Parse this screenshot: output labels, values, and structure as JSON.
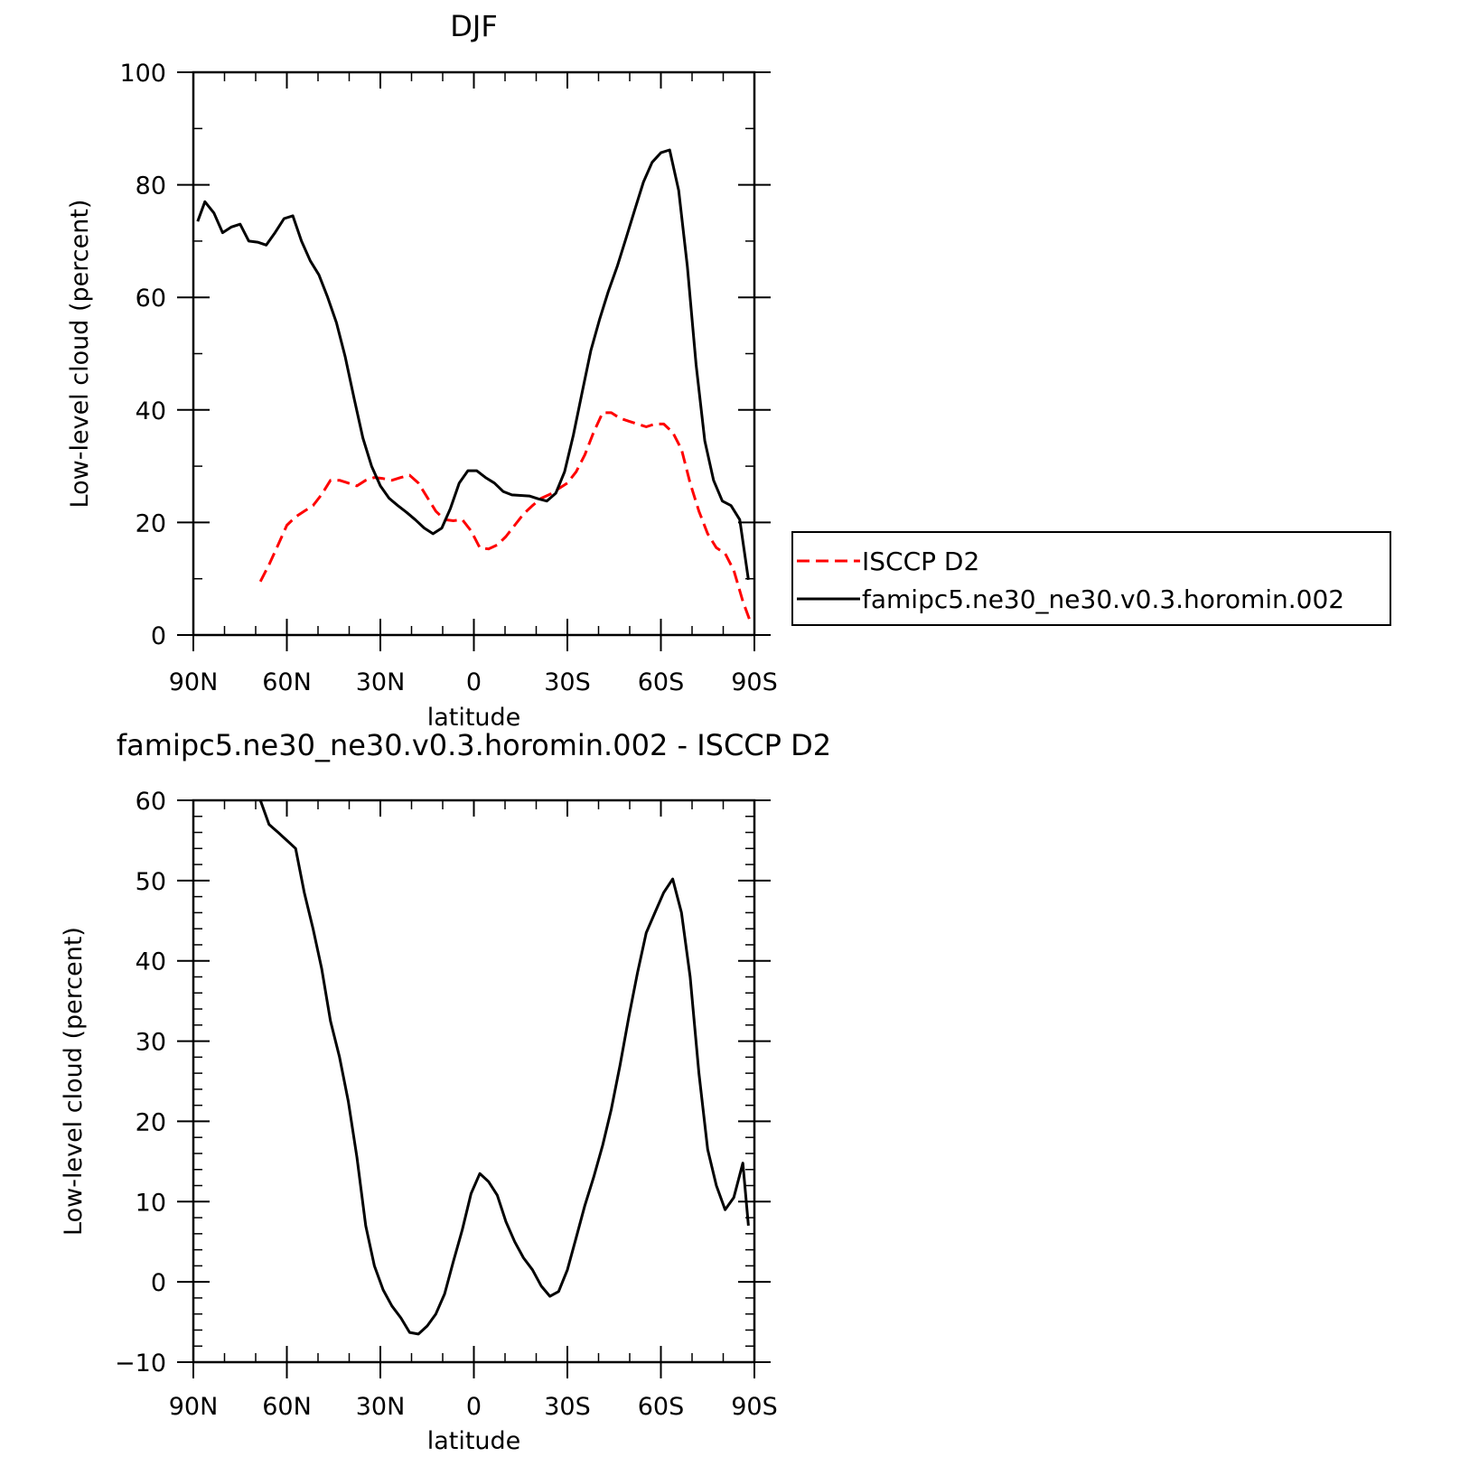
{
  "chart_data": [
    {
      "type": "line",
      "title": "DJF",
      "xlabel": "latitude",
      "ylabel": "Low-level cloud (percent)",
      "xlim": [
        90,
        -90
      ],
      "ylim": [
        0,
        100
      ],
      "xticks": [
        90,
        60,
        30,
        0,
        -30,
        -60,
        -90
      ],
      "xtick_labels": [
        "90N",
        "60N",
        "30N",
        "0",
        "30S",
        "60S",
        "90S"
      ],
      "yticks": [
        0,
        20,
        40,
        60,
        80,
        100
      ],
      "ytick_labels": [
        "0",
        "20",
        "40",
        "60",
        "80",
        "100"
      ],
      "legend": "right",
      "series": [
        {
          "name": "ISCCP D2",
          "color": "#ff0000",
          "dash": "dashed",
          "x": [
            68.5,
            65.7,
            62.8,
            60,
            57.2,
            54.4,
            51.6,
            48.8,
            46,
            43.1,
            40.3,
            37.5,
            34.7,
            31.9,
            29.1,
            26.3,
            23.4,
            20.6,
            17.8,
            15,
            12.2,
            9.4,
            6.6,
            3.7,
            0.9,
            -1.9,
            -4.7,
            -7.5,
            -10.3,
            -13.1,
            -15.9,
            -18.8,
            -21.6,
            -24.4,
            -27.2,
            -30,
            -32.8,
            -35.6,
            -38.4,
            -41.3,
            -44.1,
            -46.9,
            -49.7,
            -52.5,
            -55.3,
            -58.1,
            -60.9,
            -63.8,
            -66.6,
            -69.4,
            -72.2,
            -75,
            -77.8,
            -80.6,
            -83.4,
            -86.3,
            -88.6
          ],
          "y": [
            9.5,
            12.5,
            16,
            19.5,
            21,
            22,
            23,
            25,
            27.5,
            27.5,
            27,
            26.5,
            27.5,
            28,
            27.8,
            27.5,
            28,
            28.4,
            27,
            24.5,
            22,
            20.5,
            20.3,
            20.5,
            18.5,
            15.5,
            15.3,
            16,
            17.5,
            19.5,
            21.5,
            23,
            24.3,
            25,
            26,
            27,
            29,
            32,
            36,
            39.5,
            39.5,
            38.5,
            38,
            37.5,
            37,
            37.5,
            37.5,
            36,
            33,
            27,
            22,
            18,
            15.5,
            14.5,
            11.5,
            6,
            2.5
          ]
        },
        {
          "name": "famipc5.ne30_ne30.v0.3.horomin.002",
          "color": "#000000",
          "dash": "solid",
          "x": [
            88.6,
            86.3,
            83.4,
            80.6,
            77.8,
            75,
            72.2,
            69.4,
            66.6,
            63.8,
            60.9,
            58.1,
            55.3,
            52.5,
            49.7,
            46.9,
            44.1,
            41.3,
            38.4,
            35.6,
            32.8,
            30,
            27.2,
            24.4,
            21.6,
            18.8,
            15.9,
            13.1,
            10.3,
            7.5,
            4.7,
            1.9,
            -0.9,
            -3.7,
            -6.6,
            -9.4,
            -12.2,
            -15,
            -17.8,
            -20.6,
            -23.4,
            -26.3,
            -29.1,
            -31.9,
            -34.7,
            -37.5,
            -40.3,
            -43.1,
            -46,
            -48.8,
            -51.6,
            -54.4,
            -57.2,
            -60,
            -62.8,
            -65.7,
            -68.5,
            -71.3,
            -74.1,
            -76.9,
            -79.7,
            -82.5,
            -85.3,
            -88.1
          ],
          "y": [
            73.5,
            77,
            75,
            71.5,
            72.5,
            73,
            70,
            69.8,
            69.3,
            71.5,
            74,
            74.5,
            70,
            66.5,
            64,
            60,
            55.5,
            49.5,
            42,
            35,
            30,
            26.5,
            24.3,
            23,
            21.8,
            20.5,
            19,
            18,
            19,
            22.5,
            27,
            29.2,
            29.2,
            28,
            27,
            25.5,
            24.9,
            24.8,
            24.7,
            24.2,
            23.8,
            25.2,
            29,
            35.5,
            43,
            50.5,
            56,
            61,
            65.5,
            70.5,
            75.5,
            80.5,
            84,
            85.7,
            86.2,
            79,
            65.5,
            48,
            34.5,
            27.5,
            23.8,
            23,
            20.5,
            9.8
          ]
        }
      ]
    },
    {
      "type": "line",
      "title": "famipc5.ne30_ne30.v0.3.horomin.002 - ISCCP D2",
      "xlabel": "latitude",
      "ylabel": "Low-level cloud (percent)",
      "xlim": [
        90,
        -90
      ],
      "ylim": [
        -10,
        60
      ],
      "xticks": [
        90,
        60,
        30,
        0,
        -30,
        -60,
        -90
      ],
      "xtick_labels": [
        "90N",
        "60N",
        "30N",
        "0",
        "30S",
        "60S",
        "90S"
      ],
      "yticks": [
        -10,
        0,
        10,
        20,
        30,
        40,
        50,
        60
      ],
      "ytick_labels": [
        "−10",
        "0",
        "10",
        "20",
        "30",
        "40",
        "50",
        "60"
      ],
      "series": [
        {
          "color": "#000000",
          "dash": "solid",
          "x": [
            68.5,
            65.7,
            62.8,
            60,
            57.2,
            54.4,
            51.6,
            48.8,
            46,
            43.1,
            40.3,
            37.5,
            34.7,
            31.9,
            29.1,
            26.3,
            23.4,
            20.6,
            17.8,
            15,
            12.2,
            9.4,
            6.6,
            3.7,
            0.9,
            -1.9,
            -4.7,
            -7.5,
            -10.3,
            -13.1,
            -15.9,
            -18.8,
            -21.6,
            -24.4,
            -27.2,
            -30,
            -32.8,
            -35.6,
            -38.4,
            -41.3,
            -44.1,
            -46.9,
            -49.7,
            -52.5,
            -55.3,
            -58.1,
            -60.9,
            -63.8,
            -66.6,
            -69.4,
            -72.2,
            -75,
            -77.8,
            -80.6,
            -83.4,
            -86.3,
            -88.1
          ],
          "y": [
            60,
            57,
            56,
            55,
            54,
            48.5,
            44,
            39,
            32.5,
            28,
            22.5,
            15.5,
            7,
            2,
            -1,
            -3,
            -4.5,
            -6.3,
            -6.5,
            -5.5,
            -4,
            -1.5,
            2.5,
            6.5,
            11,
            13.5,
            12.5,
            10.8,
            7.5,
            5,
            3,
            1.5,
            -0.5,
            -1.8,
            -1.2,
            1.5,
            5.5,
            9.5,
            13,
            17,
            21.5,
            27,
            33,
            38.5,
            43.5,
            46,
            48.5,
            50.2,
            46,
            38,
            26,
            16.5,
            12,
            9,
            10.5,
            14.8,
            7
          ]
        }
      ]
    }
  ]
}
